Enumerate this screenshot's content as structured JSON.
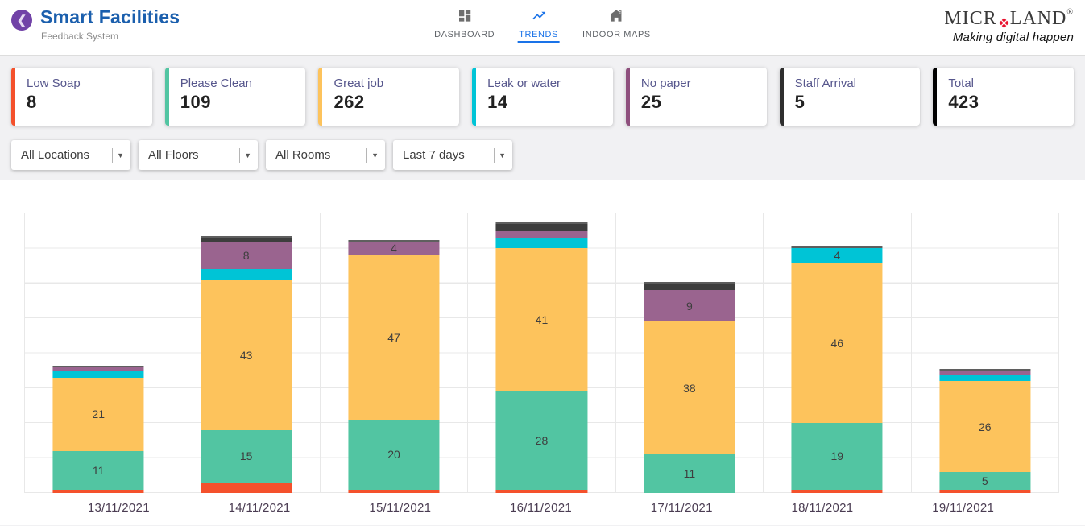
{
  "header": {
    "back_glyph": "❮",
    "title": "Smart Facilities",
    "subtitle": "Feedback System",
    "tabs": [
      {
        "label": "DASHBOARD",
        "icon": "dashboard-grid",
        "active": false
      },
      {
        "label": "TRENDS",
        "icon": "trend-line",
        "active": true
      },
      {
        "label": "INDOOR MAPS",
        "icon": "building-map",
        "active": false
      }
    ],
    "logo": {
      "text_left": "MICR",
      "text_right": "LAND",
      "registered": "®",
      "tagline": "Making digital happen",
      "accent_color": "#e8112d"
    }
  },
  "cards": [
    {
      "label": "Low Soap",
      "value": "8",
      "accent": "#f4512c"
    },
    {
      "label": "Please Clean",
      "value": "109",
      "accent": "#52c5a2"
    },
    {
      "label": "Great job",
      "value": "262",
      "accent": "#fdc35c"
    },
    {
      "label": "Leak or water",
      "value": "14",
      "accent": "#00c4d6"
    },
    {
      "label": "No paper",
      "value": "25",
      "accent": "#8e4f7d"
    },
    {
      "label": "Staff Arrival",
      "value": "5",
      "accent": "#2e2e2e"
    },
    {
      "label": "Total",
      "value": "423",
      "accent": "#000000"
    }
  ],
  "filters": [
    {
      "value": "All Locations"
    },
    {
      "value": "All Floors"
    },
    {
      "value": "All Rooms"
    },
    {
      "value": "Last 7 days"
    }
  ],
  "chart_data": {
    "type": "bar",
    "stacked": true,
    "title": "",
    "xlabel": "",
    "ylabel": "",
    "legend": "none",
    "grid": true,
    "ylim": [
      0,
      80
    ],
    "grid_step": 10,
    "value_label_min": 4,
    "categories": [
      "13/11/2021",
      "14/11/2021",
      "15/11/2021",
      "16/11/2021",
      "17/11/2021",
      "18/11/2021",
      "19/11/2021"
    ],
    "series": [
      {
        "name": "Low Soap",
        "color": "#f4512c",
        "values": [
          1,
          3,
          1,
          1,
          0,
          1,
          1
        ]
      },
      {
        "name": "Please Clean",
        "color": "#52c5a2",
        "values": [
          11,
          15,
          20,
          28,
          11,
          19,
          5
        ]
      },
      {
        "name": "Great job",
        "color": "#fdc35c",
        "values": [
          21,
          43,
          47,
          41,
          38,
          46,
          26
        ]
      },
      {
        "name": "Leak or water",
        "color": "#00c4d6",
        "values": [
          2,
          3,
          0,
          3,
          0,
          4,
          2
        ]
      },
      {
        "name": "No paper",
        "color": "#9a648f",
        "values": [
          1,
          8,
          4,
          2,
          9,
          0,
          1
        ]
      },
      {
        "name": "Staff Arrival",
        "color": "#3d3d3d",
        "values": [
          0,
          1,
          0,
          2,
          2,
          0,
          0
        ]
      }
    ]
  }
}
